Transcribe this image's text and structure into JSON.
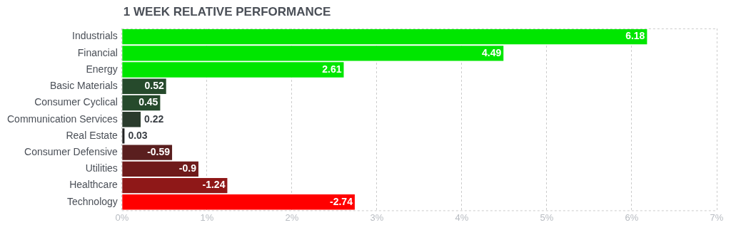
{
  "chart_data": {
    "type": "bar",
    "orientation": "horizontal",
    "title": "1 WEEK RELATIVE PERFORMANCE",
    "categories": [
      "Industrials",
      "Financial",
      "Energy",
      "Basic Materials",
      "Consumer Cyclical",
      "Communication Services",
      "Real Estate",
      "Consumer Defensive",
      "Utilities",
      "Healthcare",
      "Technology"
    ],
    "values": [
      6.18,
      4.49,
      2.61,
      0.52,
      0.45,
      0.22,
      0.03,
      -0.59,
      -0.9,
      -1.24,
      -2.74
    ],
    "base": [
      0,
      0,
      0,
      0,
      0,
      0,
      0,
      0.59,
      0.9,
      1.24,
      2.74
    ],
    "data_labels": true,
    "colors": [
      "#00e600",
      "#00e600",
      "#00e600",
      "#264a2c",
      "#264a2c",
      "#2a3b2c",
      "#222222",
      "#5a1f1f",
      "#6f1b1b",
      "#8f1818",
      "#ff0000"
    ],
    "xlim": [
      0,
      7
    ],
    "xticks": [
      {
        "value": 0,
        "label": "0%"
      },
      {
        "value": 1,
        "label": "1%"
      },
      {
        "value": 2,
        "label": "2%"
      },
      {
        "value": 3,
        "label": "3%"
      },
      {
        "value": 4,
        "label": "4%"
      },
      {
        "value": 5,
        "label": "5%"
      },
      {
        "value": 6,
        "label": "6%"
      },
      {
        "value": 7,
        "label": "7%"
      }
    ],
    "grid": "x",
    "legend": false
  }
}
